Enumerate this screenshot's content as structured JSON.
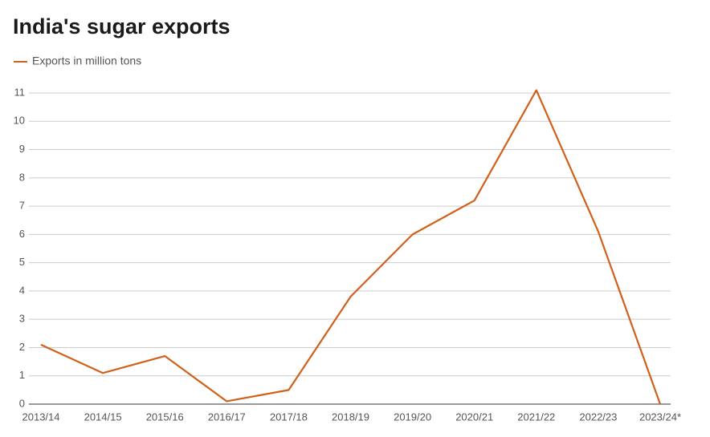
{
  "chart_data": {
    "type": "line",
    "title": "India's sugar exports",
    "categories": [
      "2013/14",
      "2014/15",
      "2015/16",
      "2016/17",
      "2017/18",
      "2018/19",
      "2019/20",
      "2020/21",
      "2021/22",
      "2022/23",
      "2023/24*"
    ],
    "series": [
      {
        "name": "Exports in million tons",
        "color": "#d0601a",
        "values": [
          2.1,
          1.1,
          1.7,
          0.1,
          0.5,
          3.8,
          6.0,
          7.2,
          11.1,
          6.1,
          0
        ]
      }
    ],
    "ylim": [
      0,
      11
    ],
    "yticks": [
      0,
      1,
      2,
      3,
      4,
      5,
      6,
      7,
      8,
      9,
      10,
      11
    ],
    "grid": true,
    "legend": "top-left"
  }
}
